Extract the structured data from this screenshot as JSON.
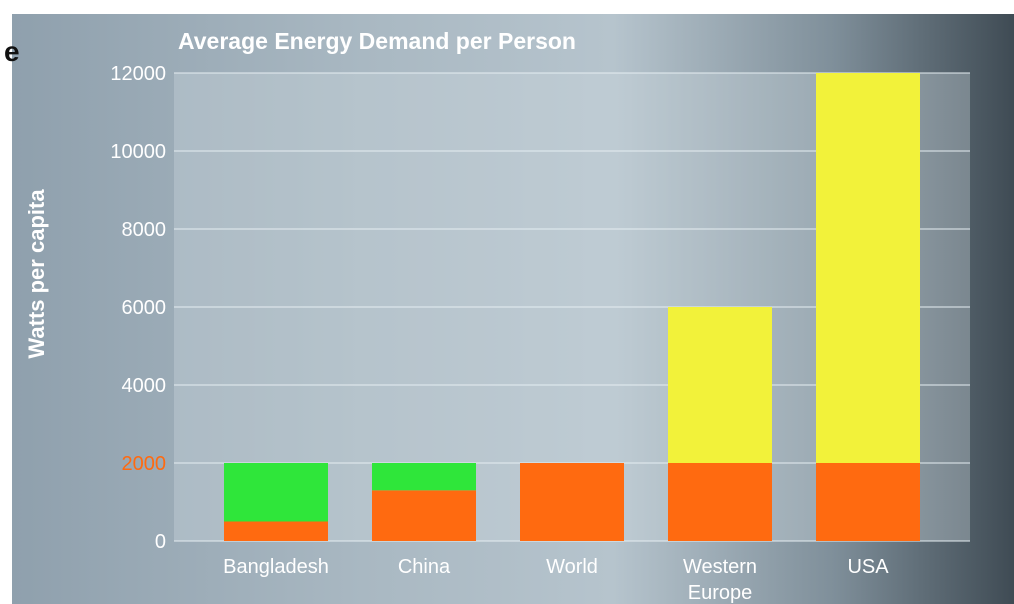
{
  "fragment_text": "e",
  "chart_data": {
    "type": "bar",
    "stacked": true,
    "title": "Average Energy Demand per Person",
    "ylabel": "Watts per capita",
    "xlabel": "",
    "ylim": [
      0,
      12000
    ],
    "yticks": [
      "0",
      "2000",
      "4000",
      "6000",
      "8000",
      "10000",
      "12000"
    ],
    "highlight_tick": "2000",
    "grid": true,
    "categories": [
      "Bangladesh",
      "China",
      "World",
      "Western Europe",
      "USA"
    ],
    "category_lines": [
      [
        "Bangladesh"
      ],
      [
        "China"
      ],
      [
        "World"
      ],
      [
        "Western",
        "Europe"
      ],
      [
        "USA"
      ]
    ],
    "series": [
      {
        "values": [
          500,
          1300,
          2000,
          2000,
          2000
        ],
        "color": "#ff6a10"
      },
      {
        "values": [
          1500,
          700,
          0,
          0,
          0
        ],
        "color": "#2fe63a"
      },
      {
        "values": [
          0,
          0,
          0,
          4000,
          10000
        ],
        "color": "#f2f23a"
      }
    ]
  }
}
